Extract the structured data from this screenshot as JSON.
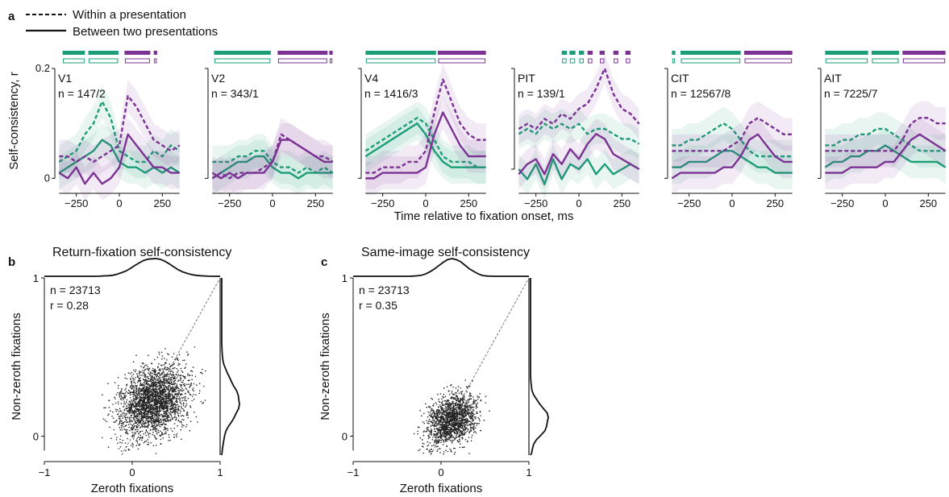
{
  "figure": {
    "panel_letters": [
      "a",
      "b",
      "c"
    ],
    "legend": [
      {
        "label": "Within a presentation",
        "style": "dashed"
      },
      {
        "label": "Between two presentations",
        "style": "solid"
      }
    ],
    "colors": {
      "zeroth": "#1b9e77",
      "nonzeroth": "#7b3294",
      "scatter": "#222222"
    }
  },
  "chart_data": [
    {
      "type": "line",
      "panel": "a",
      "ylabel": "Self-consistency, r",
      "xlabel": "Time relative to fixation onset, ms",
      "xlim": [
        -375,
        375
      ],
      "ylim": [
        -0.02,
        0.2
      ],
      "yticks": [
        0,
        0.2
      ],
      "ytick_labels": [
        "0",
        "0.2"
      ],
      "xticks": [
        -250,
        0,
        250
      ],
      "xtick_labels": [
        "−250",
        "0",
        "250"
      ],
      "subplots": [
        {
          "area": "V1",
          "n_label": "n = 147/2",
          "ylim": [
            -0.02,
            0.2
          ],
          "x": [
            -350,
            -300,
            -250,
            -200,
            -150,
            -100,
            -50,
            0,
            50,
            100,
            150,
            200,
            250,
            300,
            350
          ],
          "series": [
            {
              "name": "zeroth-within",
              "values": [
                0.03,
                0.04,
                0.05,
                0.08,
                0.1,
                0.14,
                0.11,
                0.05,
                0.04,
                0.03,
                0.03,
                0.05,
                0.04,
                0.06,
                0.05
              ]
            },
            {
              "name": "zeroth-between",
              "values": [
                0.01,
                0.02,
                0.03,
                0.04,
                0.05,
                0.07,
                0.06,
                0.03,
                0.02,
                0.02,
                0.01,
                0.02,
                0.01,
                0.02,
                0.01
              ]
            },
            {
              "name": "nonzeroth-within",
              "values": [
                0.04,
                0.04,
                0.03,
                0.04,
                0.03,
                0.04,
                0.05,
                0.06,
                0.15,
                0.13,
                0.1,
                0.07,
                0.06,
                0.05,
                0.06
              ]
            },
            {
              "name": "nonzeroth-between",
              "values": [
                0.01,
                0.0,
                0.02,
                -0.01,
                0.01,
                -0.01,
                0.0,
                0.02,
                0.08,
                0.06,
                0.04,
                0.02,
                0.02,
                0.01,
                0.01
              ]
            }
          ]
        },
        {
          "area": "V2",
          "n_label": "n = 343/1",
          "ylim": [
            -0.02,
            0.2
          ],
          "x": [
            -350,
            -300,
            -250,
            -200,
            -150,
            -100,
            -50,
            0,
            50,
            100,
            150,
            200,
            250,
            300,
            350
          ],
          "series": [
            {
              "name": "zeroth-within",
              "values": [
                0.03,
                0.03,
                0.03,
                0.04,
                0.04,
                0.05,
                0.05,
                0.03,
                0.02,
                0.02,
                0.01,
                0.02,
                0.01,
                0.02,
                0.01
              ]
            },
            {
              "name": "zeroth-between",
              "values": [
                0.0,
                0.01,
                0.02,
                0.03,
                0.03,
                0.04,
                0.04,
                0.02,
                0.01,
                0.01,
                0.0,
                0.01,
                0.01,
                0.01,
                0.01
              ]
            },
            {
              "name": "nonzeroth-within",
              "values": [
                0.0,
                0.01,
                0.0,
                0.01,
                0.01,
                0.01,
                0.02,
                0.03,
                0.08,
                0.07,
                0.06,
                0.05,
                0.04,
                0.04,
                0.03
              ]
            },
            {
              "name": "nonzeroth-between",
              "values": [
                0.01,
                0.0,
                0.01,
                0.0,
                0.01,
                0.01,
                0.01,
                0.03,
                0.07,
                0.07,
                0.06,
                0.05,
                0.04,
                0.03,
                0.03
              ]
            }
          ]
        },
        {
          "area": "V4",
          "n_label": "n = 1416/3",
          "ylim": [
            -0.02,
            0.2
          ],
          "x": [
            -350,
            -300,
            -250,
            -200,
            -150,
            -100,
            -50,
            0,
            50,
            100,
            150,
            200,
            250,
            300,
            350
          ],
          "series": [
            {
              "name": "zeroth-within",
              "values": [
                0.05,
                0.06,
                0.07,
                0.08,
                0.09,
                0.1,
                0.11,
                0.1,
                0.07,
                0.04,
                0.03,
                0.03,
                0.03,
                0.02,
                0.02
              ]
            },
            {
              "name": "zeroth-between",
              "values": [
                0.04,
                0.05,
                0.06,
                0.07,
                0.08,
                0.09,
                0.1,
                0.08,
                0.05,
                0.03,
                0.02,
                0.02,
                0.02,
                0.02,
                0.02
              ]
            },
            {
              "name": "nonzeroth-within",
              "values": [
                0.01,
                0.01,
                0.02,
                0.02,
                0.02,
                0.03,
                0.03,
                0.05,
                0.12,
                0.18,
                0.14,
                0.1,
                0.08,
                0.07,
                0.07
              ]
            },
            {
              "name": "nonzeroth-between",
              "values": [
                0.0,
                0.0,
                0.01,
                0.01,
                0.01,
                0.01,
                0.01,
                0.02,
                0.08,
                0.12,
                0.09,
                0.06,
                0.04,
                0.04,
                0.04
              ]
            }
          ]
        },
        {
          "area": "PIT",
          "n_label": "n = 139/1",
          "ylim": [
            -0.04,
            0.2
          ],
          "x": [
            -350,
            -300,
            -250,
            -200,
            -150,
            -100,
            -50,
            0,
            50,
            100,
            150,
            200,
            250,
            300,
            350
          ],
          "series": [
            {
              "name": "zeroth-within",
              "values": [
                0.07,
                0.08,
                0.07,
                0.09,
                0.08,
                0.09,
                0.08,
                0.09,
                0.07,
                0.08,
                0.08,
                0.07,
                0.06,
                0.06,
                0.05
              ]
            },
            {
              "name": "zeroth-between",
              "values": [
                0.0,
                -0.02,
                0.01,
                -0.03,
                0.02,
                -0.02,
                0.01,
                0.0,
                0.02,
                -0.01,
                0.01,
                -0.01,
                0.0,
                0.01,
                0.0
              ]
            },
            {
              "name": "nonzeroth-within",
              "values": [
                0.08,
                0.09,
                0.08,
                0.1,
                0.09,
                0.11,
                0.1,
                0.12,
                0.13,
                0.16,
                0.2,
                0.15,
                0.12,
                0.11,
                0.09
              ]
            },
            {
              "name": "nonzeroth-between",
              "values": [
                -0.01,
                0.01,
                0.02,
                -0.01,
                0.03,
                0.01,
                0.04,
                0.02,
                0.05,
                0.07,
                0.06,
                0.03,
                0.02,
                0.01,
                0.0
              ]
            }
          ]
        },
        {
          "area": "CIT",
          "n_label": "n = 12567/8",
          "ylim": [
            -0.02,
            0.2
          ],
          "x": [
            -350,
            -300,
            -250,
            -200,
            -150,
            -100,
            -50,
            0,
            50,
            100,
            150,
            200,
            250,
            300,
            350
          ],
          "series": [
            {
              "name": "zeroth-within",
              "values": [
                0.06,
                0.06,
                0.07,
                0.07,
                0.08,
                0.09,
                0.1,
                0.09,
                0.07,
                0.05,
                0.04,
                0.04,
                0.04,
                0.04,
                0.04
              ]
            },
            {
              "name": "zeroth-between",
              "values": [
                0.02,
                0.02,
                0.03,
                0.03,
                0.03,
                0.04,
                0.05,
                0.05,
                0.04,
                0.03,
                0.02,
                0.02,
                0.01,
                0.01,
                0.01
              ]
            },
            {
              "name": "nonzeroth-within",
              "values": [
                0.05,
                0.05,
                0.05,
                0.05,
                0.05,
                0.05,
                0.05,
                0.06,
                0.07,
                0.1,
                0.11,
                0.1,
                0.09,
                0.08,
                0.08
              ]
            },
            {
              "name": "nonzeroth-between",
              "values": [
                0.0,
                0.01,
                0.01,
                0.01,
                0.01,
                0.01,
                0.02,
                0.02,
                0.04,
                0.07,
                0.08,
                0.06,
                0.04,
                0.03,
                0.03
              ]
            }
          ]
        },
        {
          "area": "AIT",
          "n_label": "n = 7225/7",
          "ylim": [
            -0.02,
            0.2
          ],
          "x": [
            -350,
            -300,
            -250,
            -200,
            -150,
            -100,
            -50,
            0,
            50,
            100,
            150,
            200,
            250,
            300,
            350
          ],
          "series": [
            {
              "name": "zeroth-within",
              "values": [
                0.06,
                0.06,
                0.07,
                0.07,
                0.08,
                0.08,
                0.09,
                0.09,
                0.08,
                0.07,
                0.06,
                0.05,
                0.05,
                0.05,
                0.05
              ]
            },
            {
              "name": "zeroth-between",
              "values": [
                0.02,
                0.03,
                0.03,
                0.04,
                0.04,
                0.05,
                0.05,
                0.06,
                0.05,
                0.04,
                0.03,
                0.03,
                0.03,
                0.03,
                0.02
              ]
            },
            {
              "name": "nonzeroth-within",
              "values": [
                0.05,
                0.05,
                0.05,
                0.05,
                0.05,
                0.05,
                0.05,
                0.05,
                0.05,
                0.07,
                0.1,
                0.11,
                0.11,
                0.1,
                0.1
              ]
            },
            {
              "name": "nonzeroth-between",
              "values": [
                0.01,
                0.01,
                0.01,
                0.02,
                0.02,
                0.02,
                0.02,
                0.03,
                0.03,
                0.05,
                0.07,
                0.08,
                0.07,
                0.06,
                0.05
              ]
            }
          ]
        }
      ]
    },
    {
      "type": "scatter",
      "panel": "b",
      "title": "Return-fixation self-consistency",
      "xlabel": "Zeroth fixations",
      "ylabel": "Non-zeroth fixations",
      "xlim": [
        -1,
        1
      ],
      "ylim": [
        -0.12,
        1
      ],
      "xticks": [
        -1,
        0,
        1
      ],
      "xtick_labels": [
        "−1",
        "0",
        "1"
      ],
      "yticks": [
        0,
        1
      ],
      "ytick_labels": [
        "0",
        "1"
      ],
      "n_label": "n = 23713",
      "r_label": "r = 0.28",
      "n_points_drawn": 2600,
      "x_mean": 0.25,
      "x_sd": 0.28,
      "y_mean": 0.22,
      "y_sd": 0.16,
      "correlation": 0.28,
      "diagonal": true
    },
    {
      "type": "scatter",
      "panel": "c",
      "title": "Same-image self-consistency",
      "xlabel": "Zeroth fixations",
      "ylabel": "Non-zeroth fixations",
      "xlim": [
        -1,
        1
      ],
      "ylim": [
        -0.12,
        1
      ],
      "xticks": [
        -1,
        0,
        1
      ],
      "xtick_labels": [
        "−1",
        "0",
        "1"
      ],
      "yticks": [
        0,
        1
      ],
      "ytick_labels": [
        "0",
        "1"
      ],
      "n_label": "n = 23713",
      "r_label": "r = 0.35",
      "n_points_drawn": 1600,
      "x_mean": 0.12,
      "x_sd": 0.2,
      "y_mean": 0.1,
      "y_sd": 0.12,
      "correlation": 0.35,
      "diagonal": true
    }
  ]
}
